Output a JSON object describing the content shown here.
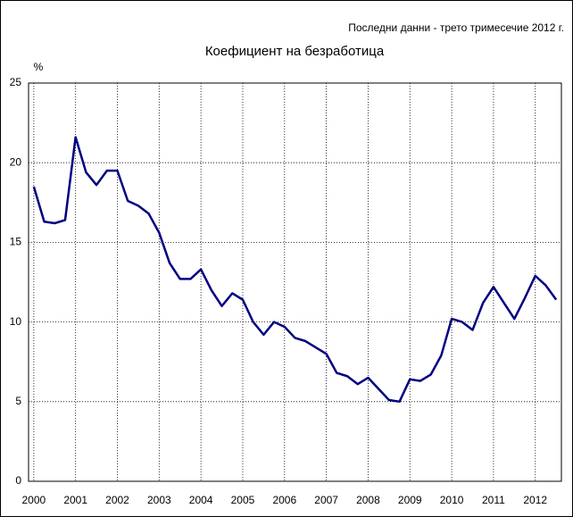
{
  "chart_data": {
    "type": "line",
    "title": "Коефициент на безработица",
    "subtitle": "Последни данни - трето тримесечие 2012 г.",
    "y_label": "%",
    "x": [
      2000,
      2000.25,
      2000.5,
      2000.75,
      2001,
      2001.25,
      2001.5,
      2001.75,
      2002,
      2002.25,
      2002.5,
      2002.75,
      2003,
      2003.25,
      2003.5,
      2003.75,
      2004,
      2004.25,
      2004.5,
      2004.75,
      2005,
      2005.25,
      2005.5,
      2005.75,
      2006,
      2006.25,
      2006.5,
      2006.75,
      2007,
      2007.25,
      2007.5,
      2007.75,
      2008,
      2008.25,
      2008.5,
      2008.75,
      2009,
      2009.25,
      2009.5,
      2009.75,
      2010,
      2010.25,
      2010.5,
      2010.75,
      2011,
      2011.25,
      2011.5,
      2011.75,
      2012,
      2012.25,
      2012.5
    ],
    "series": [
      {
        "color": "#000080",
        "values": [
          18.5,
          16.3,
          16.2,
          16.4,
          21.6,
          19.4,
          18.6,
          19.5,
          19.5,
          17.6,
          17.3,
          16.8,
          15.6,
          13.7,
          12.7,
          12.7,
          13.3,
          12.0,
          11.0,
          11.8,
          11.4,
          10.0,
          9.2,
          10.0,
          9.7,
          9.0,
          8.8,
          8.4,
          8.0,
          6.8,
          6.6,
          6.1,
          6.5,
          5.8,
          5.1,
          5.0,
          6.4,
          6.3,
          6.7,
          7.9,
          10.2,
          10.0,
          9.5,
          11.2,
          12.2,
          11.2,
          10.2,
          11.5,
          12.9,
          12.3,
          11.4
        ]
      }
    ],
    "xlim": [
      1999.875,
      2012.625
    ],
    "xticks": [
      2000,
      2001,
      2002,
      2003,
      2004,
      2005,
      2006,
      2007,
      2008,
      2009,
      2010,
      2011,
      2012
    ],
    "ylim": [
      0,
      25
    ],
    "yticks": [
      0,
      5,
      10,
      15,
      20,
      25
    ],
    "grid": true
  }
}
